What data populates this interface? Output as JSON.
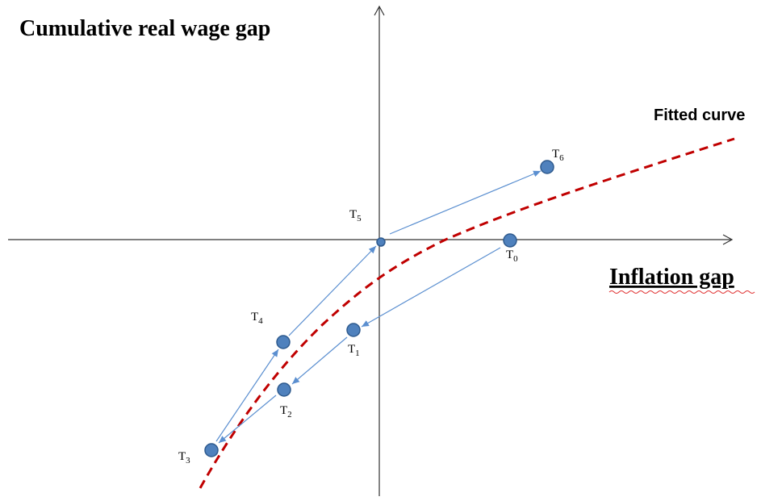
{
  "title": "Cumulative real wage gap",
  "x_axis_label": "Inflation gap",
  "curve_label": "Fitted curve",
  "nodes": [
    {
      "label": "T",
      "subscript": "0"
    },
    {
      "label": "T",
      "subscript": "1"
    },
    {
      "label": "T",
      "subscript": "2"
    },
    {
      "label": "T",
      "subscript": "3"
    },
    {
      "label": "T",
      "subscript": "4"
    },
    {
      "label": "T",
      "subscript": "5"
    },
    {
      "label": "T",
      "subscript": "6"
    }
  ]
}
